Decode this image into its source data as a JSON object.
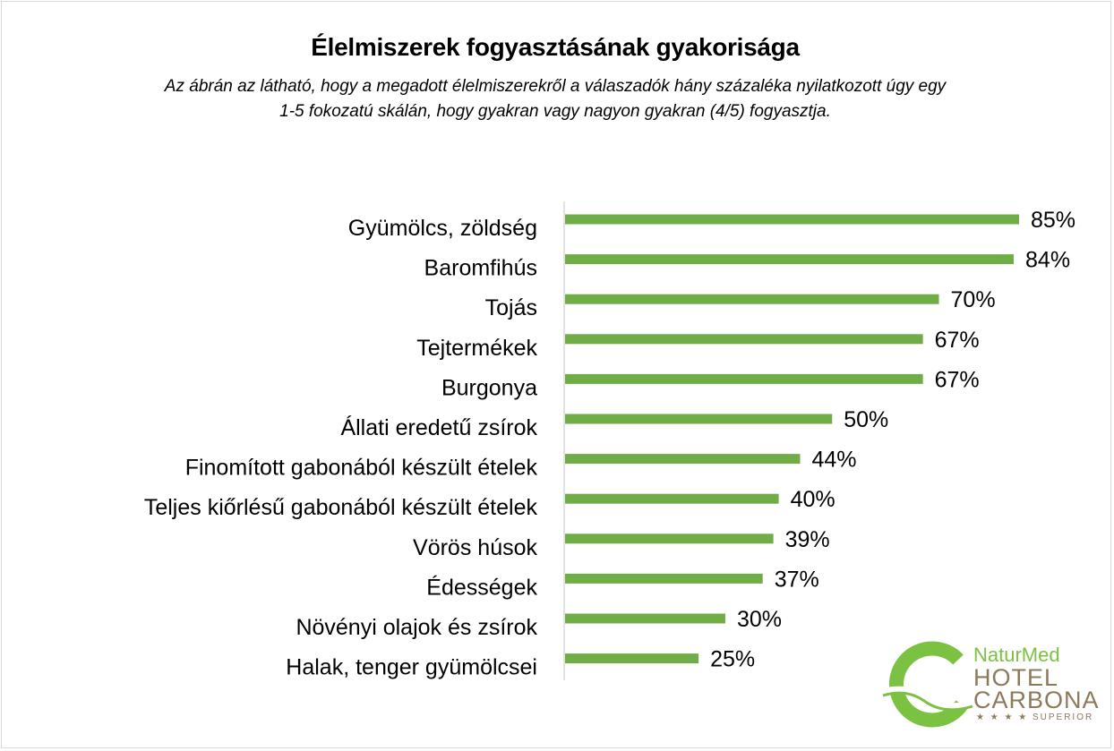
{
  "title": "Élelmiszerek fogyasztásának gyakorisága",
  "subtitle_line1": "Az ábrán az látható, hogy a megadott élelmiszerekről a válaszadók hány százaléka nyilatkozott úgy egy",
  "subtitle_line2": "1-5 fokozatú skálán, hogy gyakran vagy nagyon gyakran (4/5) fogyasztja.",
  "colors": {
    "bar": "#70ad47",
    "axis": "#d9d9d9",
    "logo_green": "#7cc242",
    "logo_brown": "#8c7a5b"
  },
  "logo": {
    "line1": "NaturMed",
    "line2": "HOTEL",
    "line3": "CARBONA",
    "line4": "★ ★ ★ ★ SUPERIOR"
  },
  "chart_data": {
    "type": "bar",
    "orientation": "horizontal",
    "title": "Élelmiszerek fogyasztásának gyakorisága",
    "categories": [
      "Gyümölcs, zöldség",
      "Baromfihús",
      "Tojás",
      "Tejtermékek",
      "Burgonya",
      "Állati eredetű zsírok",
      "Finomított gabonából készült ételek",
      "Teljes kiőrlésű gabonából készült ételek",
      "Vörös húsok",
      "Édességek",
      "Növényi olajok és zsírok",
      "Halak, tenger gyümölcsei"
    ],
    "values": [
      85,
      84,
      70,
      67,
      67,
      50,
      44,
      40,
      39,
      37,
      30,
      25
    ],
    "value_labels": [
      "85%",
      "84%",
      "70%",
      "67%",
      "67%",
      "50%",
      "44%",
      "40%",
      "39%",
      "37%",
      "30%",
      "25%"
    ],
    "unit": "%",
    "xlim": [
      0,
      100
    ],
    "grid": false,
    "legend": "none"
  }
}
